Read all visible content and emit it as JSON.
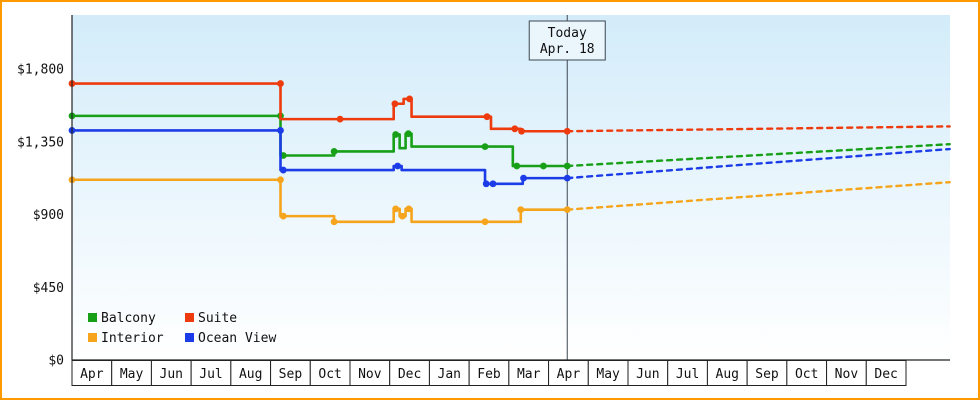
{
  "frame": {
    "border_color": "#ff9900",
    "background": "#ffffff"
  },
  "chart_data": {
    "type": "line",
    "title": "",
    "plot_background": {
      "top": "#d3ecfa",
      "bottom": "#ffffff"
    },
    "y_axis": {
      "tick_labels": [
        "$1,800",
        "$1,350",
        "$900",
        "$450",
        "$0"
      ],
      "tick_values": [
        1800,
        1350,
        900,
        450,
        0
      ],
      "ylim": [
        0,
        2134
      ],
      "grid": false
    },
    "x_axis": {
      "months": [
        "Apr",
        "May",
        "Jun",
        "Jul",
        "Aug",
        "Sep",
        "Oct",
        "Nov",
        "Dec",
        "Jan",
        "Feb",
        "Mar",
        "Apr",
        "May",
        "Jun",
        "Jul",
        "Aug",
        "Sep",
        "Oct",
        "Nov",
        "Dec"
      ]
    },
    "today_marker": {
      "line1": "Today",
      "line2": "Apr. 18",
      "month_position": 12.47,
      "line_color": "#3c4650",
      "box_fill": "#eaf5fc"
    },
    "series": [
      {
        "name": "Balcony",
        "color": "#17a017",
        "history": [
          [
            0,
            1510
          ],
          [
            5.25,
            1510
          ],
          [
            5.25,
            1265
          ],
          [
            6.6,
            1265
          ],
          [
            6.6,
            1290
          ],
          [
            8.1,
            1290
          ],
          [
            8.1,
            1395
          ],
          [
            8.25,
            1395
          ],
          [
            8.25,
            1310
          ],
          [
            8.4,
            1310
          ],
          [
            8.4,
            1400
          ],
          [
            8.55,
            1400
          ],
          [
            8.55,
            1320
          ],
          [
            11.1,
            1320
          ],
          [
            11.1,
            1200
          ],
          [
            12.47,
            1200
          ]
        ],
        "markers": [
          [
            0,
            1510
          ],
          [
            5.25,
            1510
          ],
          [
            5.32,
            1265
          ],
          [
            6.6,
            1290
          ],
          [
            8.15,
            1395
          ],
          [
            8.47,
            1400
          ],
          [
            10.4,
            1320
          ],
          [
            11.2,
            1200
          ],
          [
            11.87,
            1200
          ],
          [
            12.47,
            1200
          ]
        ],
        "forecast": {
          "end_month": 22.1,
          "end_value": 1335
        }
      },
      {
        "name": "Suite",
        "color": "#ee3b0d",
        "history": [
          [
            0,
            1710
          ],
          [
            5.25,
            1710
          ],
          [
            5.25,
            1490
          ],
          [
            8.1,
            1490
          ],
          [
            8.1,
            1585
          ],
          [
            8.35,
            1585
          ],
          [
            8.35,
            1615
          ],
          [
            8.55,
            1615
          ],
          [
            8.55,
            1505
          ],
          [
            10.55,
            1505
          ],
          [
            10.55,
            1430
          ],
          [
            11.3,
            1430
          ],
          [
            11.3,
            1415
          ],
          [
            12.47,
            1415
          ]
        ],
        "markers": [
          [
            0,
            1710
          ],
          [
            5.25,
            1710
          ],
          [
            6.75,
            1490
          ],
          [
            8.13,
            1585
          ],
          [
            8.5,
            1615
          ],
          [
            10.45,
            1505
          ],
          [
            11.15,
            1430
          ],
          [
            11.32,
            1415
          ],
          [
            12.47,
            1415
          ]
        ],
        "forecast": {
          "end_month": 22.1,
          "end_value": 1445
        }
      },
      {
        "name": "Interior",
        "color": "#f5a41b",
        "history": [
          [
            0,
            1115
          ],
          [
            5.25,
            1115
          ],
          [
            5.25,
            890
          ],
          [
            6.6,
            890
          ],
          [
            6.6,
            855
          ],
          [
            8.1,
            855
          ],
          [
            8.1,
            935
          ],
          [
            8.25,
            935
          ],
          [
            8.25,
            890
          ],
          [
            8.4,
            890
          ],
          [
            8.4,
            935
          ],
          [
            8.55,
            935
          ],
          [
            8.55,
            855
          ],
          [
            11.3,
            855
          ],
          [
            11.3,
            930
          ],
          [
            12.47,
            930
          ]
        ],
        "markers": [
          [
            0,
            1115
          ],
          [
            5.25,
            1115
          ],
          [
            5.32,
            890
          ],
          [
            6.6,
            855
          ],
          [
            8.15,
            935
          ],
          [
            8.32,
            890
          ],
          [
            8.48,
            935
          ],
          [
            10.4,
            855
          ],
          [
            11.3,
            930
          ],
          [
            12.47,
            930
          ]
        ],
        "forecast": {
          "end_month": 22.1,
          "end_value": 1100
        }
      },
      {
        "name": "Ocean View",
        "color": "#1c3ce8",
        "history": [
          [
            0,
            1420
          ],
          [
            5.25,
            1420
          ],
          [
            5.25,
            1175
          ],
          [
            8.1,
            1175
          ],
          [
            8.1,
            1200
          ],
          [
            8.3,
            1200
          ],
          [
            8.3,
            1175
          ],
          [
            10.4,
            1175
          ],
          [
            10.4,
            1090
          ],
          [
            11.35,
            1090
          ],
          [
            11.35,
            1125
          ],
          [
            12.47,
            1125
          ]
        ],
        "markers": [
          [
            0,
            1420
          ],
          [
            5.25,
            1420
          ],
          [
            5.32,
            1175
          ],
          [
            8.2,
            1200
          ],
          [
            10.43,
            1090
          ],
          [
            10.6,
            1090
          ],
          [
            11.37,
            1125
          ],
          [
            12.47,
            1125
          ]
        ],
        "forecast": {
          "end_month": 22.1,
          "end_value": 1305
        }
      }
    ],
    "legend": {
      "position": "bottom-left",
      "rows": 2,
      "cols": 2,
      "items": [
        {
          "label": "Balcony",
          "color": "#17a017"
        },
        {
          "label": "Suite",
          "color": "#ee3b0d"
        },
        {
          "label": "Interior",
          "color": "#f5a41b"
        },
        {
          "label": "Ocean View",
          "color": "#1c3ce8"
        }
      ]
    }
  }
}
